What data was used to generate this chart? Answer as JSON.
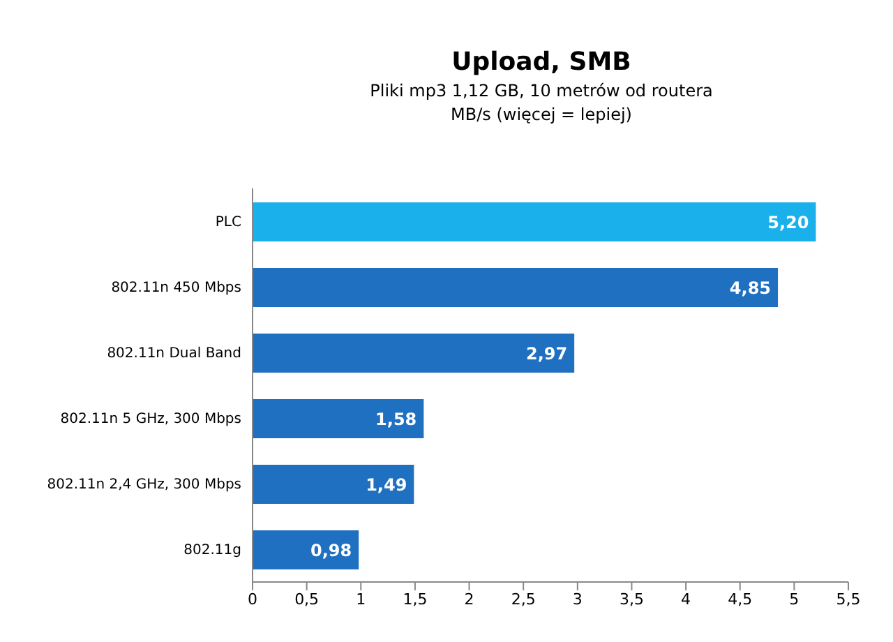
{
  "chart_data": {
    "type": "bar",
    "orientation": "horizontal",
    "title": "Upload, SMB",
    "subtitle": "Pliki mp3 1,12 GB, 10 metrów od routera\nMB/s (więcej = lepiej)",
    "categories": [
      "PLC",
      "802.11n 450 Mbps",
      "802.11n Dual Band",
      "802.11n 5 GHz, 300 Mbps",
      "802.11n 2,4 GHz, 300 Mbps",
      "802.11g"
    ],
    "values": [
      5.2,
      4.85,
      2.97,
      1.58,
      1.49,
      0.98
    ],
    "value_labels": [
      "5,20",
      "4,85",
      "2,97",
      "1,58",
      "1,49",
      "0,98"
    ],
    "colors": [
      "#1ab0ec",
      "#1f70c1",
      "#1f70c1",
      "#1f70c1",
      "#1f70c1",
      "#1f70c1"
    ],
    "xlim": [
      0,
      5.5
    ],
    "xticks": [
      0,
      {
        "value": 0.5,
        "label": "0,5"
      },
      1,
      {
        "value": 1.5,
        "label": "1,5"
      },
      2,
      {
        "value": 2.5,
        "label": "2,5"
      },
      3,
      {
        "value": 3.5,
        "label": "3,5"
      },
      4,
      {
        "value": 4.5,
        "label": "4,5"
      },
      5,
      {
        "value": 5.5,
        "label": "5,5"
      }
    ],
    "grid": false
  }
}
